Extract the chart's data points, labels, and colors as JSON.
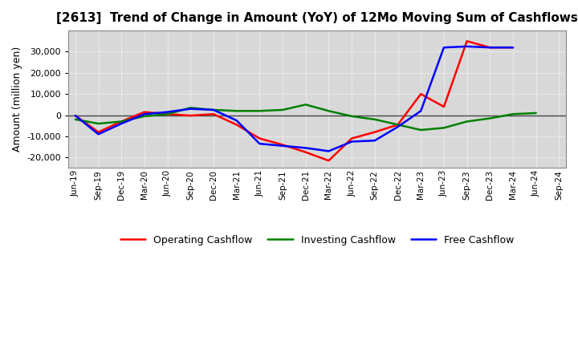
{
  "title": "[2613]  Trend of Change in Amount (YoY) of 12Mo Moving Sum of Cashflows",
  "ylabel": "Amount (million yen)",
  "x_labels": [
    "Jun-19",
    "Sep-19",
    "Dec-19",
    "Mar-20",
    "Jun-20",
    "Sep-20",
    "Dec-20",
    "Mar-21",
    "Jun-21",
    "Sep-21",
    "Dec-21",
    "Mar-22",
    "Jun-22",
    "Sep-22",
    "Dec-22",
    "Mar-23",
    "Jun-23",
    "Sep-23",
    "Dec-23",
    "Mar-24",
    "Jun-24",
    "Sep-24"
  ],
  "operating": [
    -200,
    -8000,
    -3000,
    1500,
    500,
    -200,
    500,
    -4500,
    -11000,
    -14000,
    -17500,
    -21500,
    -11000,
    -8000,
    -4500,
    10000,
    4000,
    35000,
    32000,
    32000,
    null,
    null
  ],
  "investing": [
    -2000,
    -4000,
    -3000,
    -500,
    500,
    3500,
    2500,
    2000,
    2000,
    2500,
    5000,
    2000,
    -500,
    -2000,
    -4500,
    -7000,
    -6000,
    -3000,
    -1500,
    500,
    1000,
    null
  ],
  "free": [
    -200,
    -9000,
    -4000,
    500,
    1500,
    3000,
    2500,
    -2500,
    -13500,
    -14500,
    -15500,
    -17000,
    -12500,
    -12000,
    -5500,
    2000,
    32000,
    32500,
    32000,
    32000,
    null,
    null
  ],
  "operating_color": "#ff0000",
  "investing_color": "#008000",
  "free_color": "#0000ff",
  "ylim": [
    -25000,
    40000
  ],
  "yticks": [
    -20000,
    -10000,
    0,
    10000,
    20000,
    30000
  ],
  "bg_color": "#ffffff",
  "plot_bg_color": "#d8d8d8",
  "grid_color": "#ffffff",
  "linewidth": 1.8
}
